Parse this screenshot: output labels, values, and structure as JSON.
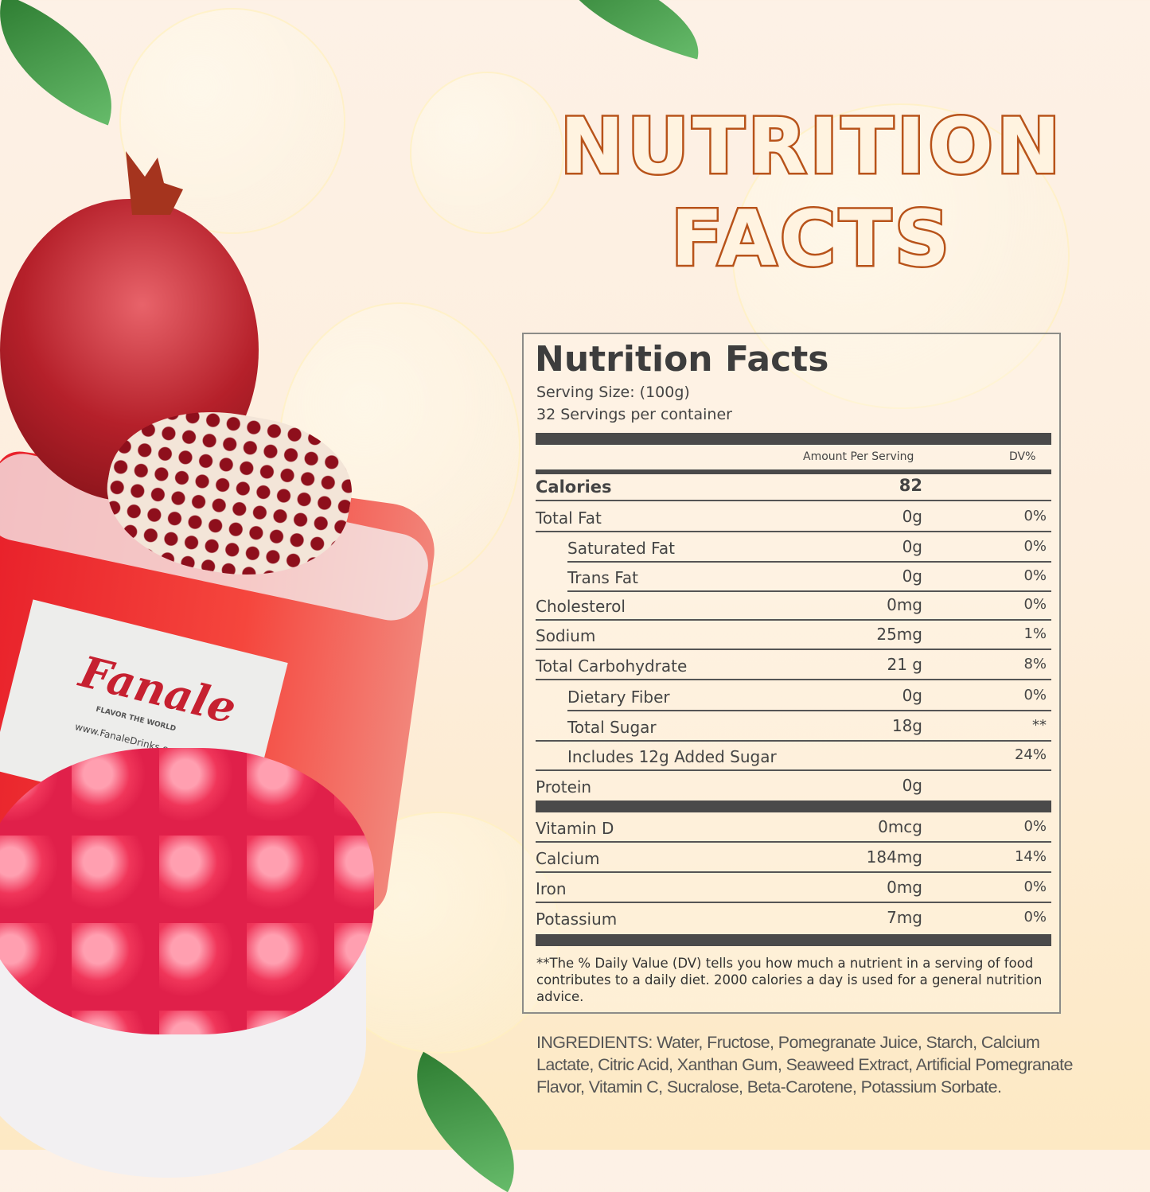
{
  "headline": {
    "line1": "NUTRITION",
    "line2": "FACTS"
  },
  "brand": {
    "logo": "Fanale",
    "tagline": "FLAVOR THE WORLD",
    "website": "www.FanaleDrinks.com"
  },
  "label": {
    "title": "Nutrition Facts",
    "serving_size": "Serving Size:  (100g)",
    "servings": "32 Servings per container",
    "col_amount": "Amount Per Serving",
    "col_dv": "DV%",
    "calories": {
      "name": "Calories",
      "amount": "82"
    },
    "rows": [
      {
        "name": "Total Fat",
        "amount": "0g",
        "dv": "0%"
      },
      {
        "name": "Saturated Fat",
        "amount": "0g",
        "dv": "0%"
      },
      {
        "name": "Trans Fat",
        "amount": "0g",
        "dv": "0%"
      },
      {
        "name": "Cholesterol",
        "amount": "0mg",
        "dv": "0%"
      },
      {
        "name": "Sodium",
        "amount": "25mg",
        "dv": "1%"
      },
      {
        "name": "Total Carbohydrate",
        "amount": "21 g",
        "dv": "8%"
      },
      {
        "name": "Dietary Fiber",
        "amount": "0g",
        "dv": "0%"
      },
      {
        "name": "Total Sugar",
        "amount": "18g",
        "dv": "**"
      },
      {
        "name": "Includes 12g Added Sugar",
        "amount": "",
        "dv": "24%"
      },
      {
        "name": "Protein",
        "amount": "0g",
        "dv": ""
      }
    ],
    "vitamins": [
      {
        "name": "Vitamin D",
        "amount": "0mcg",
        "dv": "0%"
      },
      {
        "name": "Calcium",
        "amount": "184mg",
        "dv": "14%"
      },
      {
        "name": "Iron",
        "amount": "0mg",
        "dv": "0%"
      },
      {
        "name": "Potassium",
        "amount": "7mg",
        "dv": "0%"
      }
    ],
    "footnote": "**The % Daily Value (DV) tells you how much a nutrient in a serving of food contributes to a daily diet. 2000 calories a  day is used for a general nutrition advice."
  },
  "ingredients": "INGREDIENTS: Water, Fructose, Pomegranate Juice, Starch, Calcium Lactate, Citric Acid, Xanthan Gum, Seaweed Extract, Artificial Pomegranate Flavor, Vitamin C, Sucralose, Beta-Carotene, Potassium Sorbate."
}
